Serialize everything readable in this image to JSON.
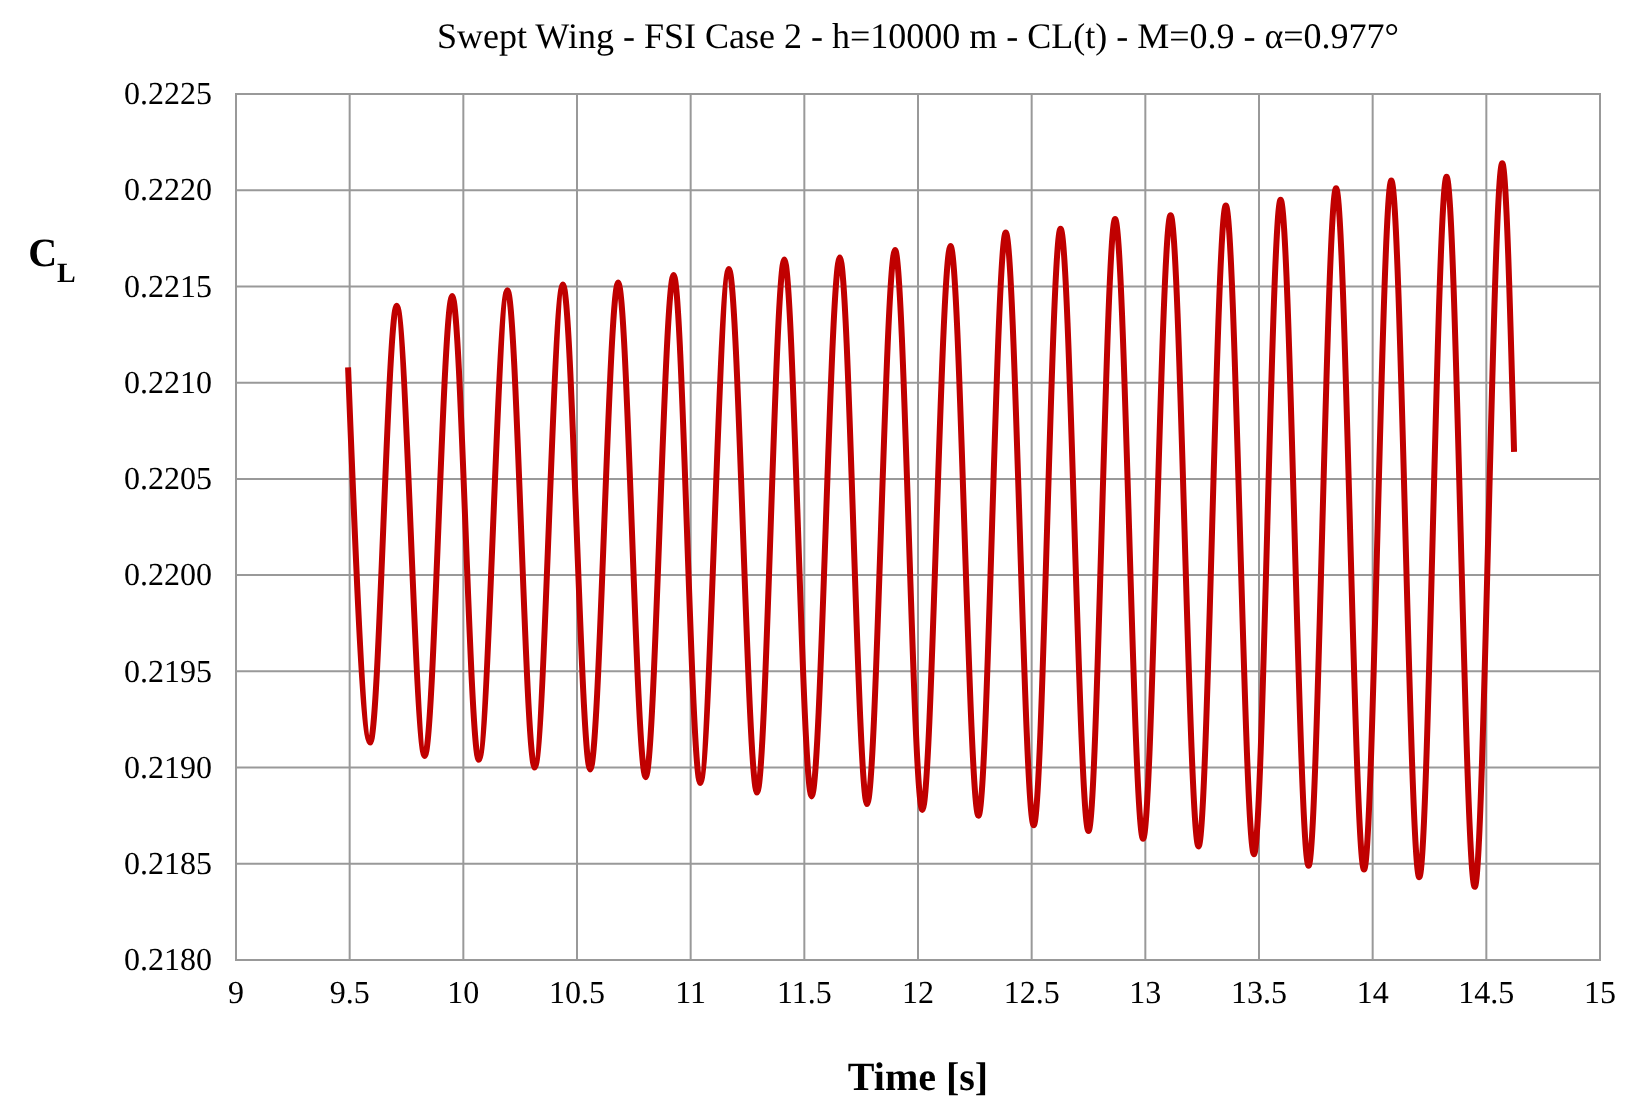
{
  "chart_data": {
    "type": "line",
    "title": "Swept Wing - FSI Case 2 - h=10000 m - CL(t) - M=0.9 - α=0.977°",
    "xlabel": "Time [s]",
    "ylabel": "C$_{L}$",
    "x": [
      9.493,
      9.59,
      9.707,
      9.83,
      9.951,
      10.068,
      10.194,
      10.314,
      10.438,
      10.558,
      10.681,
      10.802,
      10.925,
      11.042,
      11.168,
      11.292,
      11.412,
      11.532,
      11.656,
      11.776,
      11.899,
      12.019,
      12.143,
      12.266,
      12.386,
      12.509,
      12.627,
      12.75,
      12.867,
      12.99,
      13.111,
      13.234,
      13.354,
      13.478,
      13.595,
      13.718,
      13.839,
      13.962,
      14.082,
      14.205,
      14.325,
      14.449,
      14.57,
      14.622
    ],
    "series": [
      {
        "color": "#c00000",
        "values": [
          0.22108,
          0.21913,
          0.2214,
          0.21906,
          0.22145,
          0.21904,
          0.22148,
          0.219,
          0.22151,
          0.21899,
          0.22152,
          0.21895,
          0.22156,
          0.21892,
          0.22159,
          0.21887,
          0.22164,
          0.21885,
          0.22165,
          0.21881,
          0.22169,
          0.21878,
          0.22171,
          0.21875,
          0.22178,
          0.2187,
          0.2218,
          0.21867,
          0.22185,
          0.21863,
          0.22187,
          0.21859,
          0.22192,
          0.21855,
          0.22195,
          0.21849,
          0.22201,
          0.21847,
          0.22205,
          0.21843,
          0.22207,
          0.21838,
          0.22214,
          0.22064
        ]
      }
    ],
    "xlim": [
      9,
      15
    ],
    "xticks": [
      9,
      9.5,
      10,
      10.5,
      11,
      11.5,
      12,
      12.5,
      13,
      13.5,
      14,
      14.5,
      15
    ],
    "ylim": [
      0.218,
      0.2225
    ],
    "yticks": [
      {
        "value": 0.218,
        "label": "0.2180"
      },
      {
        "value": 0.2185,
        "label": "0.2185"
      },
      {
        "value": 0.219,
        "label": "0.2190"
      },
      {
        "value": 0.2195,
        "label": "0.2195"
      },
      {
        "value": 0.22,
        "label": "0.2200"
      },
      {
        "value": 0.2205,
        "label": "0.2205"
      },
      {
        "value": 0.221,
        "label": "0.2210"
      },
      {
        "value": 0.2215,
        "label": "0.2215"
      },
      {
        "value": 0.222,
        "label": "0.2220"
      },
      {
        "value": 0.2225,
        "label": "0.2225"
      }
    ],
    "grid": true,
    "marker": "none",
    "line_style": "solid"
  }
}
